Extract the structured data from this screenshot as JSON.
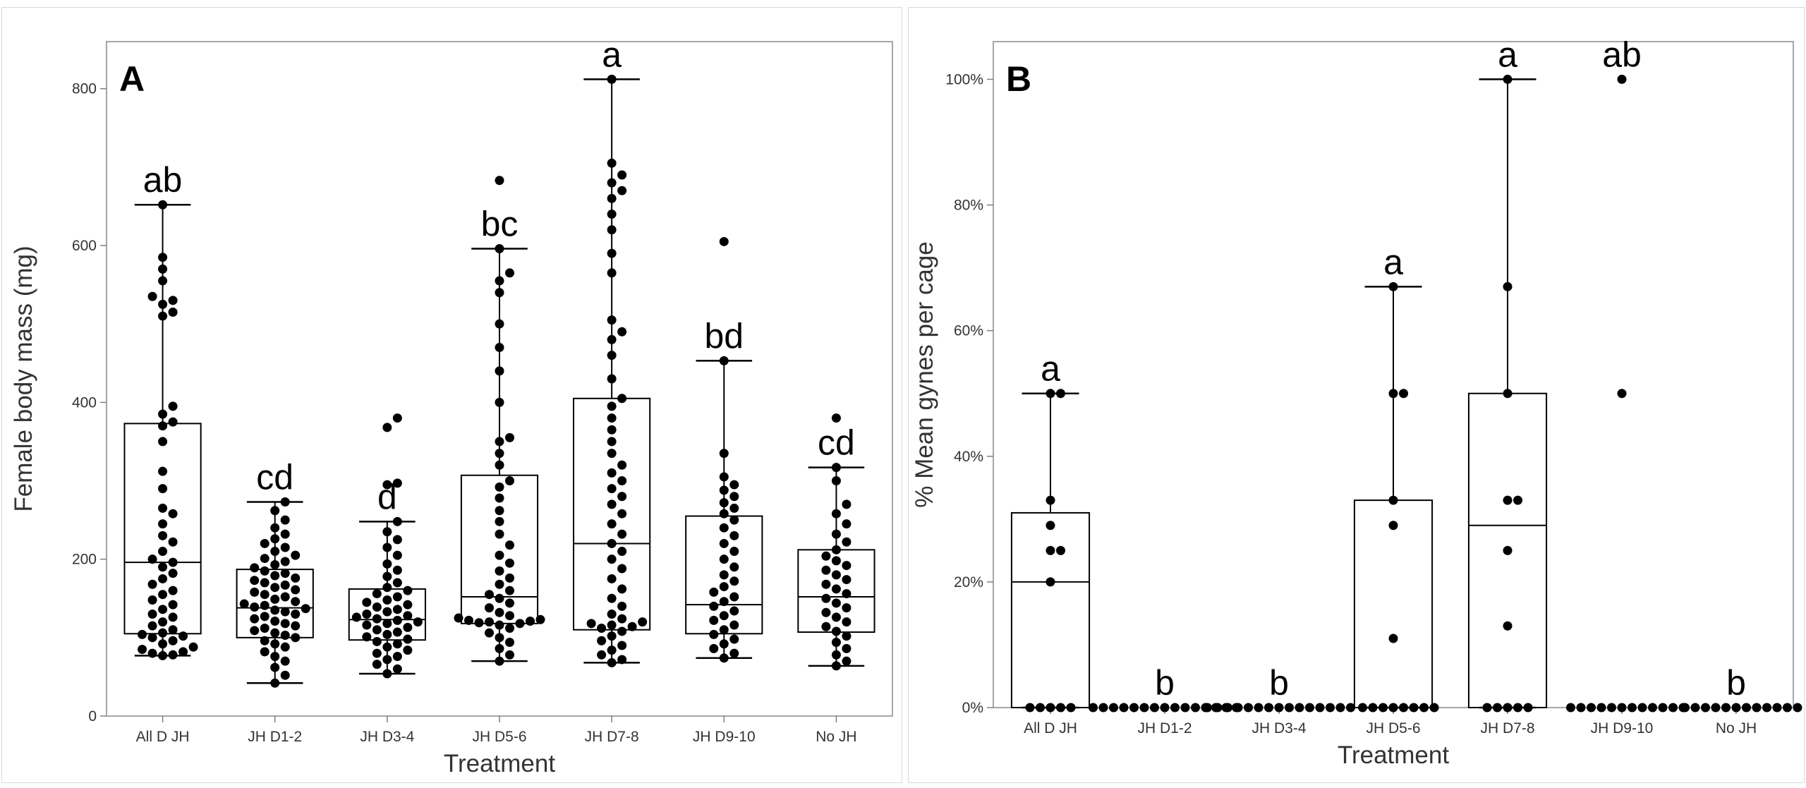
{
  "chart_data": [
    {
      "type": "box-dot",
      "panel_label": "A",
      "xlabel": "Treatment",
      "ylabel": "Female body mass (mg)",
      "ylim": [
        0,
        860
      ],
      "yticks": [
        0,
        200,
        400,
        600,
        800
      ],
      "ytick_labels": [
        "0",
        "200",
        "400",
        "600",
        "800"
      ],
      "grid": false,
      "categories": [
        "All D JH",
        "JH D1-2",
        "JH D3-4",
        "JH D5-6",
        "JH D7-8",
        "JH D9-10",
        "No JH"
      ],
      "letters": [
        "ab",
        "cd",
        "d",
        "bc",
        "a",
        "bd",
        "cd"
      ],
      "boxes": [
        {
          "whisker_low": 77,
          "q1": 105,
          "median": 196,
          "q3": 373,
          "whisker_high": 652
        },
        {
          "whisker_low": 42,
          "q1": 100,
          "median": 138,
          "q3": 187,
          "whisker_high": 273
        },
        {
          "whisker_low": 54,
          "q1": 97,
          "median": 123,
          "q3": 162,
          "whisker_high": 248
        },
        {
          "whisker_low": 70,
          "q1": 118,
          "median": 152,
          "q3": 307,
          "whisker_high": 596
        },
        {
          "whisker_low": 68,
          "q1": 110,
          "median": 220,
          "q3": 405,
          "whisker_high": 812
        },
        {
          "whisker_low": 74,
          "q1": 105,
          "median": 142,
          "q3": 255,
          "whisker_high": 453
        },
        {
          "whisker_low": 64,
          "q1": 107,
          "median": 152,
          "q3": 212,
          "whisker_high": 317
        }
      ],
      "points": [
        [
          77,
          78,
          80,
          82,
          85,
          88,
          92,
          96,
          100,
          102,
          104,
          106,
          110,
          115,
          120,
          126,
          130,
          136,
          142,
          148,
          155,
          160,
          168,
          175,
          182,
          190,
          196,
          200,
          210,
          222,
          230,
          245,
          258,
          265,
          290,
          312,
          350,
          370,
          375,
          385,
          395,
          510,
          515,
          525,
          530,
          535,
          555,
          570,
          585,
          652
        ],
        [
          42,
          52,
          62,
          70,
          76,
          82,
          88,
          92,
          96,
          100,
          103,
          106,
          109,
          112,
          115,
          118,
          121,
          124,
          127,
          130,
          133,
          135,
          137,
          139,
          141,
          143,
          146,
          149,
          152,
          155,
          158,
          161,
          164,
          167,
          170,
          173,
          176,
          179,
          182,
          185,
          189,
          193,
          197,
          201,
          205,
          210,
          215,
          220,
          226,
          232,
          240,
          250,
          262,
          273
        ],
        [
          54,
          60,
          66,
          72,
          76,
          80,
          84,
          88,
          92,
          95,
          98,
          101,
          104,
          107,
          110,
          113,
          116,
          118,
          120,
          122,
          124,
          126,
          128,
          130,
          133,
          136,
          139,
          142,
          145,
          148,
          152,
          156,
          160,
          164,
          170,
          178,
          186,
          194,
          205,
          215,
          225,
          235,
          248,
          295,
          297,
          368,
          380
        ],
        [
          70,
          78,
          86,
          94,
          100,
          106,
          112,
          116,
          118,
          119,
          120,
          121,
          122,
          123,
          125,
          128,
          132,
          138,
          144,
          150,
          155,
          160,
          168,
          176,
          185,
          195,
          205,
          218,
          232,
          248,
          262,
          278,
          292,
          300,
          320,
          335,
          350,
          355,
          400,
          440,
          470,
          500,
          540,
          555,
          565,
          596,
          683
        ],
        [
          68,
          72,
          78,
          84,
          90,
          96,
          102,
          108,
          112,
          114,
          116,
          118,
          120,
          124,
          130,
          140,
          150,
          162,
          175,
          188,
          200,
          210,
          220,
          232,
          245,
          258,
          270,
          280,
          290,
          300,
          310,
          320,
          335,
          350,
          365,
          380,
          395,
          405,
          430,
          460,
          480,
          490,
          505,
          565,
          590,
          620,
          640,
          660,
          670,
          680,
          690,
          705,
          812
        ],
        [
          74,
          80,
          86,
          92,
          98,
          104,
          110,
          116,
          122,
          128,
          134,
          140,
          146,
          152,
          158,
          165,
          172,
          180,
          190,
          200,
          210,
          220,
          230,
          240,
          250,
          258,
          265,
          272,
          280,
          288,
          295,
          305,
          335,
          453,
          605
        ],
        [
          64,
          70,
          78,
          86,
          94,
          102,
          108,
          114,
          120,
          126,
          132,
          138,
          144,
          150,
          156,
          162,
          168,
          174,
          180,
          186,
          192,
          198,
          204,
          212,
          222,
          232,
          245,
          258,
          270,
          300,
          317,
          380
        ]
      ]
    },
    {
      "type": "box-dot",
      "panel_label": "B",
      "xlabel": "Treatment",
      "ylabel": "% Mean gynes per cage",
      "ylim": [
        0,
        106
      ],
      "yticks": [
        0,
        20,
        40,
        60,
        80,
        100
      ],
      "ytick_labels": [
        "0%",
        "20%",
        "40%",
        "60%",
        "80%",
        "100%"
      ],
      "grid": false,
      "categories": [
        "All D JH",
        "JH D1-2",
        "JH D3-4",
        "JH D5-6",
        "JH D7-8",
        "JH D9-10",
        "No JH"
      ],
      "letters": [
        "a",
        "b",
        "b",
        "a",
        "a",
        "ab",
        "b"
      ],
      "boxes": [
        {
          "whisker_low": 0,
          "q1": 0,
          "median": 20,
          "q3": 31,
          "whisker_high": 50
        },
        null,
        null,
        {
          "whisker_low": 0,
          "q1": 0,
          "median": 0,
          "q3": 33,
          "whisker_high": 67
        },
        {
          "whisker_low": 0,
          "q1": 0,
          "median": 29,
          "q3": 50,
          "whisker_high": 100
        },
        null,
        null
      ],
      "points": [
        [
          0,
          0,
          0,
          0,
          0,
          20,
          25,
          25,
          29,
          33,
          50,
          50
        ],
        [
          0,
          0,
          0,
          0,
          0,
          0,
          0,
          0,
          0,
          0,
          0,
          0,
          0,
          0,
          0
        ],
        [
          0,
          0,
          0,
          0,
          0,
          0,
          0,
          0,
          0,
          0,
          0,
          0,
          0,
          0,
          0
        ],
        [
          0,
          0,
          0,
          0,
          0,
          0,
          0,
          0,
          11,
          29,
          33,
          50,
          50,
          67
        ],
        [
          0,
          0,
          0,
          0,
          0,
          13,
          25,
          33,
          33,
          50,
          67,
          100
        ],
        [
          0,
          0,
          0,
          0,
          0,
          0,
          0,
          0,
          0,
          0,
          0,
          0,
          50,
          100
        ],
        [
          0,
          0,
          0,
          0,
          0,
          0,
          0,
          0,
          0,
          0,
          0,
          0
        ]
      ]
    }
  ]
}
